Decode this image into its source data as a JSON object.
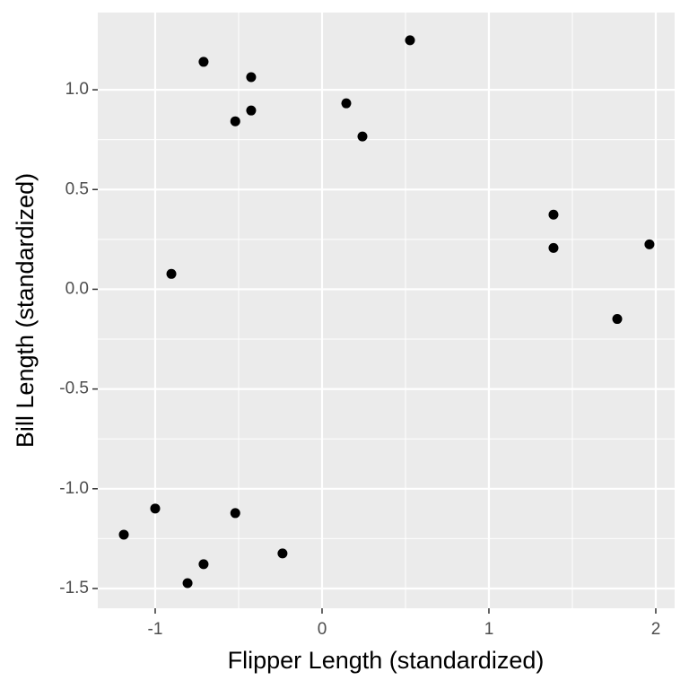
{
  "chart_data": {
    "type": "scatter",
    "x_label": "Flipper Length (standardized)",
    "y_label": "Bill Length (standardized)",
    "x": [
      -0.71,
      -0.425,
      0.527,
      -0.425,
      -0.52,
      0.145,
      0.242,
      1.387,
      1.387,
      1.962,
      1.769,
      -0.903,
      -1.0,
      -1.188,
      -0.52,
      -0.71,
      -0.806,
      -0.237
    ],
    "values": [
      1.14,
      1.063,
      1.248,
      0.896,
      0.842,
      0.932,
      0.766,
      0.374,
      0.207,
      0.225,
      -0.149,
      0.077,
      -1.099,
      -1.23,
      -1.122,
      -1.378,
      -1.473,
      -1.324
    ],
    "color": "#000000",
    "xlim": [
      -1.344,
      2.113
    ],
    "ylim": [
      -1.599,
      1.387
    ],
    "xticks": [
      -1,
      0,
      1,
      2
    ],
    "yticks": [
      {
        "value": 1.0,
        "label": "1.0"
      },
      {
        "value": 0.5,
        "label": "0.5"
      },
      {
        "value": 0.0,
        "label": "0.0"
      },
      {
        "value": -0.5,
        "label": "-0.5"
      },
      {
        "value": -1.0,
        "label": "-1.0"
      },
      {
        "value": -1.5,
        "label": "-1.5"
      }
    ],
    "grid": true
  }
}
